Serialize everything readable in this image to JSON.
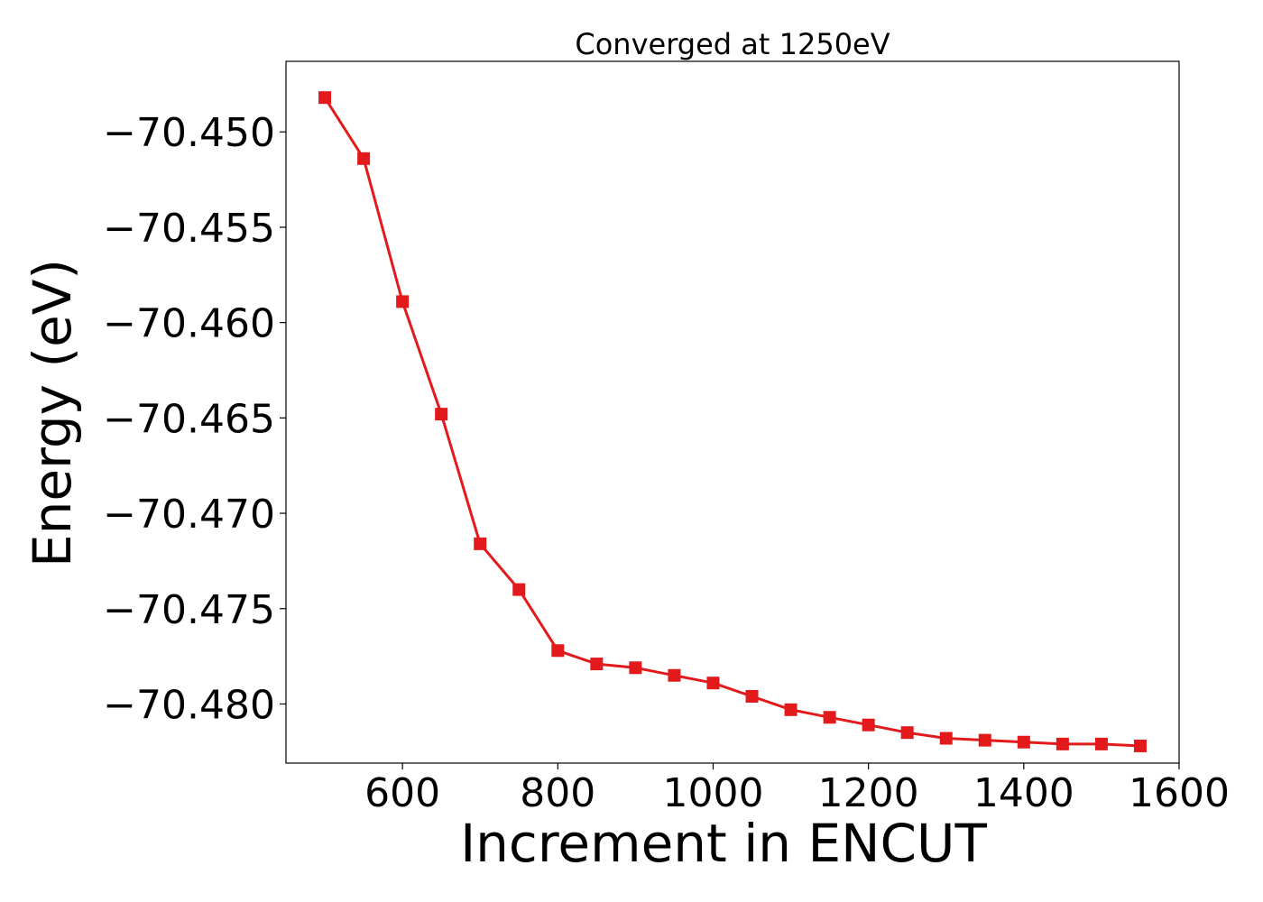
{
  "chart_data": {
    "type": "line",
    "title": "Converged at 1250eV",
    "xlabel": "Increment in ENCUT",
    "ylabel": "Energy (eV)",
    "xlim": [
      450,
      1600
    ],
    "ylim": [
      -70.4831,
      -70.4463
    ],
    "xticks": [
      600,
      800,
      1000,
      1200,
      1400,
      1600
    ],
    "yticks": [
      -70.45,
      -70.455,
      -70.46,
      -70.465,
      -70.47,
      -70.475,
      -70.48
    ],
    "ytick_labels": [
      "−70.450",
      "−70.455",
      "−70.460",
      "−70.465",
      "−70.470",
      "−70.475",
      "−70.480"
    ],
    "grid": false,
    "marker": "square",
    "color": "#e31a1c",
    "series": [
      {
        "x": [
          500,
          550,
          600,
          650,
          700,
          750,
          800,
          850,
          900,
          950,
          1000,
          1050,
          1100,
          1150,
          1200,
          1250,
          1300,
          1350,
          1400,
          1450,
          1500,
          1550
        ],
        "y": [
          -70.4482,
          -70.4514,
          -70.4589,
          -70.4648,
          -70.4716,
          -70.474,
          -70.4772,
          -70.4779,
          -70.4781,
          -70.4785,
          -70.4789,
          -70.4796,
          -70.4803,
          -70.4807,
          -70.4811,
          -70.4815,
          -70.4818,
          -70.4819,
          -70.482,
          -70.4821,
          -70.4821,
          -70.4822
        ]
      }
    ]
  }
}
